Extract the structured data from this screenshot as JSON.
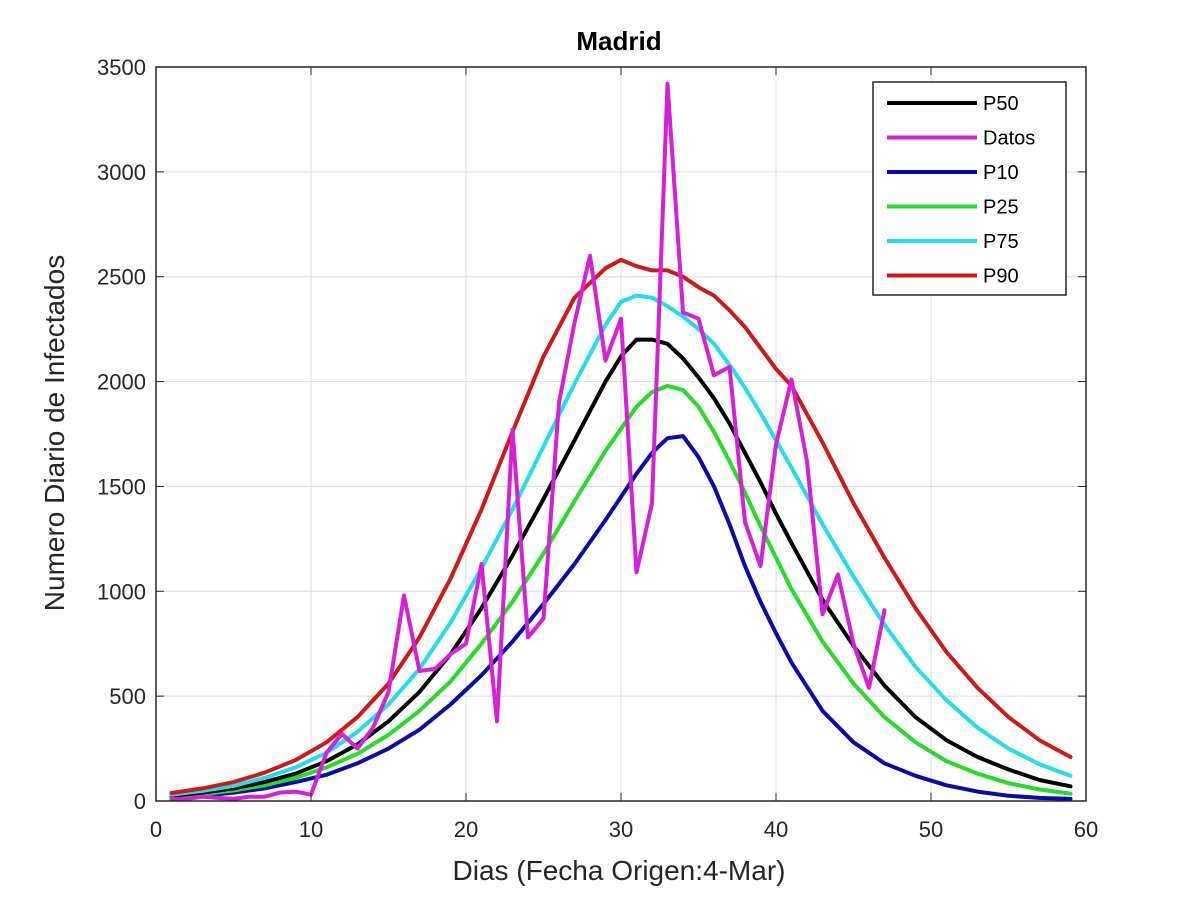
{
  "chart_data": {
    "type": "line",
    "title": "Madrid",
    "xlabel": "Dias (Fecha Origen:4-Mar)",
    "ylabel": "Numero Diario de Infectados",
    "xlim": [
      0,
      60
    ],
    "ylim": [
      0,
      3500
    ],
    "xticks": [
      0,
      10,
      20,
      30,
      40,
      50,
      60
    ],
    "yticks": [
      0,
      500,
      1000,
      1500,
      2000,
      2500,
      3000,
      3500
    ],
    "grid": true,
    "legend_position": "top-right",
    "series": [
      {
        "name": "P50",
        "color": "#000000",
        "x": [
          1,
          3,
          5,
          7,
          9,
          11,
          13,
          15,
          17,
          19,
          21,
          23,
          25,
          27,
          29,
          30,
          31,
          32,
          33,
          34,
          35,
          36,
          37,
          38,
          39,
          40,
          41,
          43,
          45,
          47,
          49,
          51,
          53,
          55,
          57,
          59
        ],
        "y": [
          25,
          40,
          60,
          90,
          130,
          190,
          270,
          380,
          520,
          700,
          920,
          1170,
          1440,
          1720,
          2000,
          2120,
          2200,
          2200,
          2180,
          2110,
          2020,
          1920,
          1800,
          1660,
          1520,
          1370,
          1230,
          960,
          740,
          550,
          400,
          290,
          210,
          150,
          100,
          70
        ]
      },
      {
        "name": "Datos",
        "color": "#D81FD8",
        "x": [
          1,
          2,
          3,
          4,
          5,
          6,
          7,
          8,
          9,
          10,
          11,
          12,
          13,
          14,
          15,
          16,
          17,
          18,
          19,
          20,
          21,
          22,
          23,
          24,
          25,
          26,
          27,
          28,
          29,
          30,
          31,
          32,
          33,
          34,
          35,
          36,
          37,
          38,
          39,
          40,
          41,
          42,
          43,
          44,
          45,
          46,
          47
        ],
        "y": [
          10,
          10,
          20,
          15,
          10,
          20,
          20,
          40,
          45,
          30,
          230,
          320,
          250,
          350,
          520,
          980,
          620,
          630,
          700,
          750,
          1130,
          380,
          1770,
          780,
          870,
          1900,
          2280,
          2600,
          2100,
          2300,
          1090,
          1420,
          3420,
          2330,
          2300,
          2030,
          2070,
          1330,
          1120,
          1700,
          2010,
          1620,
          890,
          1080,
          750,
          540,
          910
        ]
      },
      {
        "name": "P10",
        "color": "#0A0AAA",
        "x": [
          1,
          3,
          5,
          7,
          9,
          11,
          13,
          15,
          17,
          19,
          21,
          23,
          25,
          27,
          29,
          31,
          32,
          33,
          34,
          35,
          36,
          37,
          38,
          39,
          40,
          41,
          43,
          45,
          47,
          49,
          51,
          53,
          55,
          57,
          59
        ],
        "y": [
          15,
          25,
          40,
          60,
          90,
          125,
          180,
          250,
          340,
          460,
          600,
          760,
          940,
          1130,
          1340,
          1560,
          1660,
          1730,
          1740,
          1640,
          1500,
          1320,
          1120,
          950,
          800,
          660,
          430,
          280,
          180,
          120,
          75,
          45,
          25,
          15,
          10
        ]
      },
      {
        "name": "P25",
        "color": "#25DD25",
        "x": [
          1,
          3,
          5,
          7,
          9,
          11,
          13,
          15,
          17,
          19,
          21,
          23,
          25,
          27,
          29,
          31,
          32,
          33,
          34,
          35,
          36,
          37,
          38,
          39,
          40,
          41,
          43,
          45,
          47,
          49,
          51,
          53,
          55,
          57,
          59
        ],
        "y": [
          20,
          32,
          50,
          75,
          110,
          160,
          225,
          315,
          430,
          570,
          750,
          950,
          1180,
          1430,
          1670,
          1880,
          1950,
          1980,
          1960,
          1880,
          1760,
          1620,
          1470,
          1310,
          1160,
          1010,
          760,
          560,
          400,
          280,
          190,
          130,
          85,
          55,
          35
        ]
      },
      {
        "name": "P75",
        "color": "#22DDEE",
        "x": [
          1,
          3,
          5,
          7,
          9,
          11,
          13,
          15,
          17,
          19,
          21,
          23,
          25,
          27,
          29,
          30,
          31,
          32,
          33,
          34,
          35,
          36,
          37,
          38,
          39,
          40,
          41,
          43,
          45,
          47,
          49,
          51,
          53,
          55,
          57,
          59
        ],
        "y": [
          30,
          48,
          72,
          110,
          160,
          230,
          330,
          460,
          630,
          850,
          1110,
          1390,
          1690,
          1990,
          2270,
          2380,
          2410,
          2400,
          2360,
          2310,
          2250,
          2180,
          2080,
          1970,
          1850,
          1720,
          1590,
          1320,
          1070,
          840,
          640,
          480,
          350,
          250,
          175,
          120
        ]
      },
      {
        "name": "P90",
        "color": "#D01818",
        "x": [
          1,
          3,
          5,
          7,
          9,
          11,
          13,
          15,
          17,
          19,
          21,
          23,
          25,
          27,
          29,
          30,
          31,
          32,
          33,
          34,
          35,
          36,
          37,
          38,
          39,
          40,
          41,
          43,
          45,
          47,
          49,
          51,
          53,
          55,
          57,
          59
        ],
        "y": [
          38,
          60,
          90,
          135,
          195,
          280,
          400,
          560,
          780,
          1060,
          1390,
          1760,
          2120,
          2400,
          2540,
          2580,
          2550,
          2530,
          2530,
          2500,
          2450,
          2410,
          2340,
          2260,
          2160,
          2060,
          1980,
          1710,
          1420,
          1160,
          920,
          710,
          540,
          400,
          290,
          210
        ]
      }
    ],
    "legend_order": [
      "P50",
      "Datos",
      "P10",
      "P25",
      "P75",
      "P90"
    ],
    "legend_labels": {
      "P50": "P50",
      "Datos": " Datos",
      "P10": "P10",
      "P25": "P25",
      "P75": "P75",
      "P90": "P90"
    }
  }
}
